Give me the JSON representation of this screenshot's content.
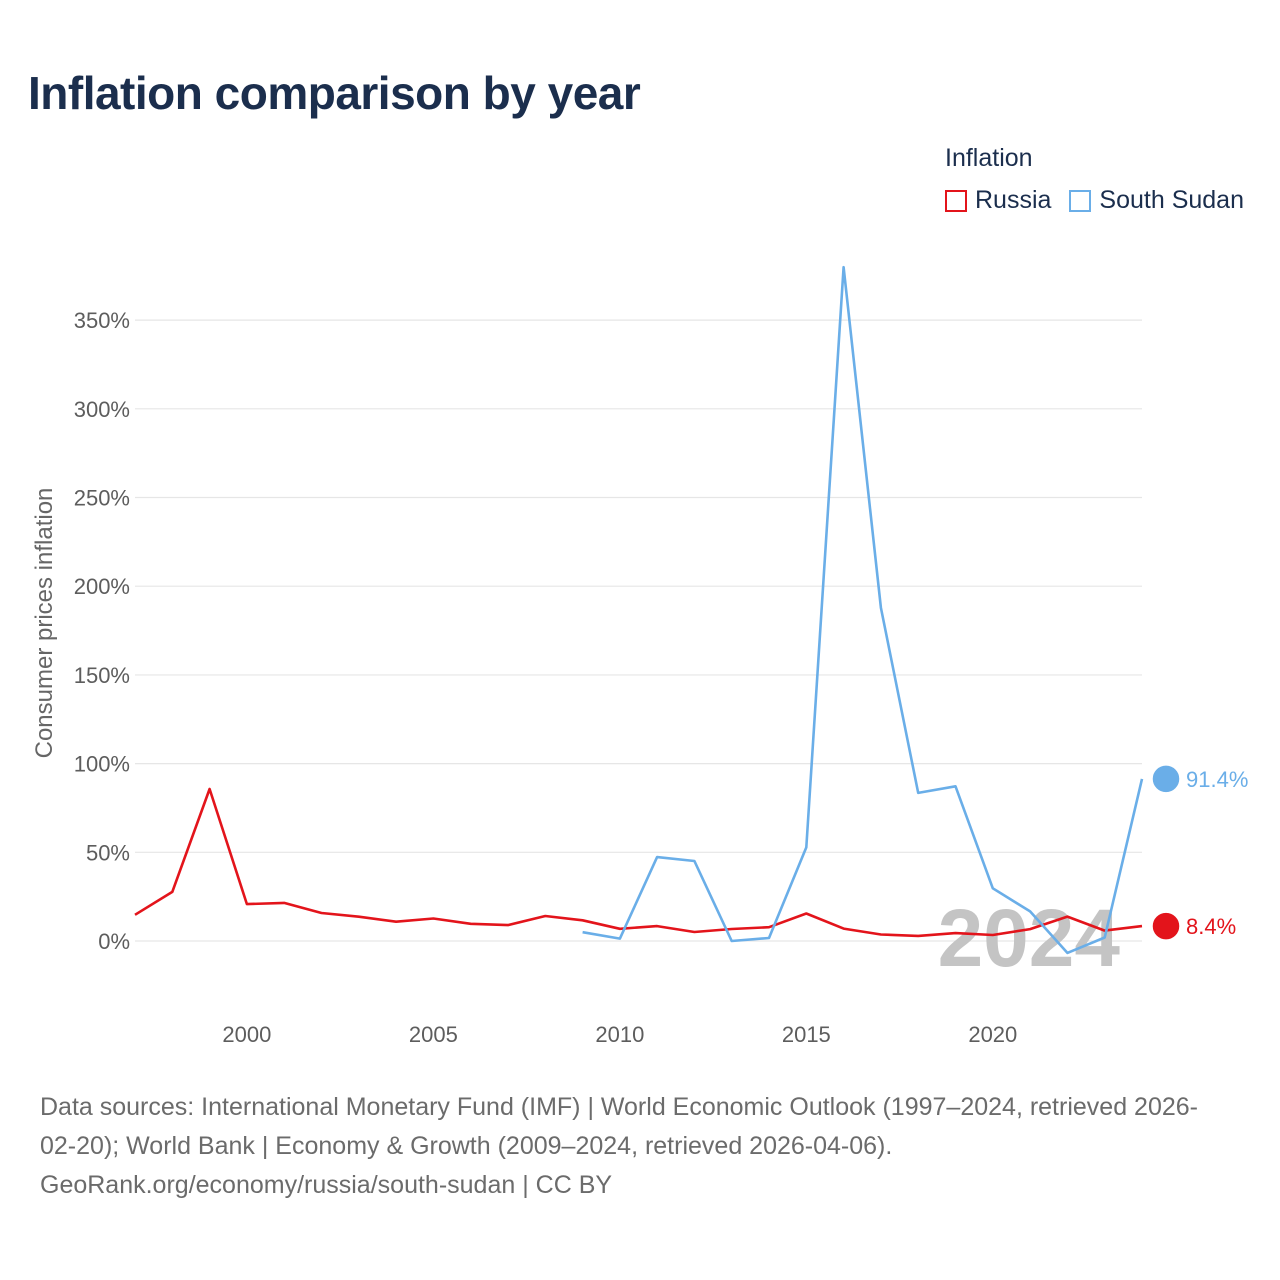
{
  "title": "Inflation comparison by year",
  "legend": {
    "title": "Inflation",
    "items": [
      {
        "label": "Russia",
        "color": "#e3141b"
      },
      {
        "label": "South Sudan",
        "color": "#6aaee8"
      }
    ]
  },
  "chart_data": {
    "type": "line",
    "title": "Inflation comparison by year",
    "xlabel": "",
    "ylabel": "Consumer prices inflation",
    "xlim": [
      1997,
      2024
    ],
    "ylim": [
      -40,
      385
    ],
    "x_ticks": [
      2000,
      2005,
      2010,
      2015,
      2020
    ],
    "y_ticks": [
      0,
      50,
      100,
      150,
      200,
      250,
      300,
      350
    ],
    "y_tick_labels": [
      "0%",
      "50%",
      "100%",
      "150%",
      "200%",
      "250%",
      "300%",
      "350%"
    ],
    "year_watermark": "2024",
    "series": [
      {
        "name": "Russia",
        "color": "#e3141b",
        "end_label": "8.4%",
        "x": [
          1997,
          1998,
          1999,
          2000,
          2001,
          2002,
          2003,
          2004,
          2005,
          2006,
          2007,
          2008,
          2009,
          2010,
          2011,
          2012,
          2013,
          2014,
          2015,
          2016,
          2017,
          2018,
          2019,
          2020,
          2021,
          2022,
          2023,
          2024
        ],
        "values": [
          14.8,
          27.7,
          85.7,
          20.8,
          21.5,
          15.8,
          13.7,
          10.9,
          12.7,
          9.7,
          9.0,
          14.1,
          11.7,
          6.9,
          8.4,
          5.1,
          6.8,
          7.8,
          15.5,
          7.0,
          3.7,
          2.9,
          4.5,
          3.4,
          6.7,
          13.8,
          5.9,
          8.4
        ]
      },
      {
        "name": "South Sudan",
        "color": "#6aaee8",
        "end_label": "91.4%",
        "x": [
          2009,
          2010,
          2011,
          2012,
          2013,
          2014,
          2015,
          2016,
          2017,
          2018,
          2019,
          2020,
          2021,
          2022,
          2023,
          2024
        ],
        "values": [
          5.0,
          1.4,
          47.3,
          45.1,
          0.0,
          1.7,
          52.8,
          379.8,
          187.9,
          83.5,
          87.2,
          29.7,
          16.7,
          -6.7,
          2.0,
          91.4
        ]
      }
    ]
  },
  "footer": {
    "line1": "Data sources: International Monetary Fund (IMF) | World Economic Outlook (1997–2024, retrieved 2026-",
    "line2": "02-20); World Bank | Economy & Growth (2009–2024, retrieved 2026-04-06).",
    "line3": "GeoRank.org/economy/russia/south-sudan | CC BY"
  }
}
